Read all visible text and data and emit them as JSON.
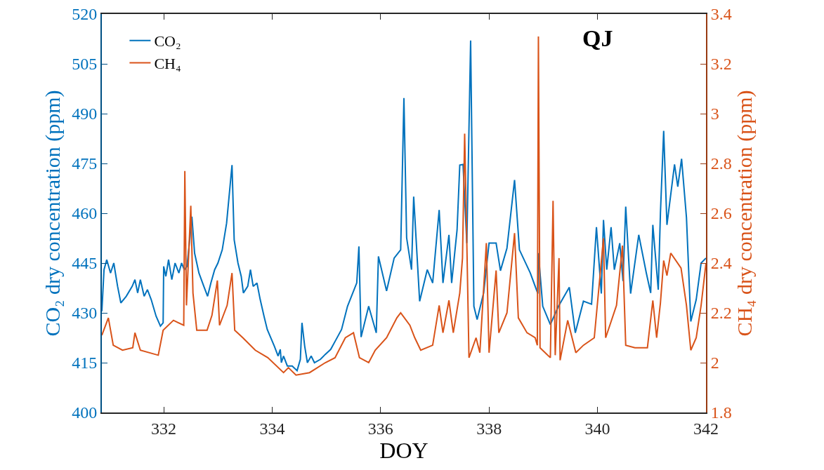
{
  "chart_data": {
    "type": "line",
    "xlabel": "DOY",
    "ylabel": "CO₂ dry concentration (ppm)",
    "y2label": "CH₄ dry concentration (ppm)",
    "annotations": [
      "QJ"
    ],
    "xlim": [
      330.86,
      342
    ],
    "xticks": [
      332,
      334,
      336,
      338,
      340,
      342
    ],
    "ylim": [
      400,
      520
    ],
    "yticks": [
      400,
      415,
      430,
      445,
      460,
      475,
      490,
      505,
      520
    ],
    "y2lim": [
      1.8,
      3.4
    ],
    "y2ticks": [
      1.8,
      2,
      2.2,
      2.4,
      2.6,
      2.8,
      3,
      3.2,
      3.4
    ],
    "grid": false,
    "legend": "top left",
    "marker": "none",
    "line_style": "solid",
    "series": [
      {
        "name": "CO₂",
        "color": "#0072bd",
        "x": [
          330.86,
          330.9,
          330.95,
          331.02,
          331.08,
          331.15,
          331.21,
          331.31,
          331.42,
          331.47,
          331.52,
          331.57,
          331.64,
          331.7,
          331.77,
          331.86,
          331.94,
          331.99,
          332,
          332.04,
          332.09,
          332.15,
          332.21,
          332.28,
          332.33,
          332.38,
          332.43,
          332.48,
          332.52,
          332.57,
          332.65,
          332.74,
          332.81,
          332.87,
          332.94,
          333,
          333.08,
          333.16,
          333.26,
          333.3,
          333.37,
          333.43,
          333.47,
          333.55,
          333.6,
          333.65,
          333.72,
          333.78,
          333.85,
          333.91,
          334.04,
          334.11,
          334.15,
          334.17,
          334.21,
          334.28,
          334.37,
          334.46,
          334.52,
          334.55,
          334.6,
          334.65,
          334.72,
          334.78,
          334.89,
          334.98,
          335.08,
          335.18,
          335.28,
          335.39,
          335.56,
          335.6,
          335.64,
          335.78,
          335.92,
          335.96,
          336.11,
          336.25,
          336.37,
          336.43,
          336.48,
          336.57,
          336.61,
          336.72,
          336.86,
          336.96,
          337.08,
          337.15,
          337.26,
          337.31,
          337.41,
          337.46,
          337.52,
          337.59,
          337.66,
          337.72,
          337.78,
          337.9,
          338,
          338.13,
          338.21,
          338.33,
          338.47,
          338.56,
          338.76,
          338.9,
          338.91,
          338.99,
          339.13,
          339.28,
          339.48,
          339.59,
          339.74,
          339.89,
          339.98,
          340.07,
          340.11,
          340.17,
          340.25,
          340.31,
          340.41,
          340.47,
          340.52,
          340.61,
          340.76,
          340.9,
          340.98,
          341.02,
          341.12,
          341.16,
          341.22,
          341.28,
          341.42,
          341.48,
          341.55,
          341.64,
          341.72,
          341.82,
          341.91,
          342
        ],
        "values": [
          430.5,
          443,
          446,
          442,
          445,
          438,
          433,
          435,
          438,
          440,
          436,
          440,
          435,
          437,
          434,
          429,
          426,
          427,
          444,
          441,
          446,
          440,
          445,
          442,
          445,
          443,
          444,
          452,
          459,
          448,
          442,
          438,
          435,
          439,
          443,
          445,
          449,
          457,
          474.5,
          452,
          445,
          441,
          436,
          438,
          443,
          438,
          439,
          434,
          429,
          425,
          420,
          417,
          419,
          415,
          417,
          414,
          414,
          412.6,
          416,
          427,
          420,
          415,
          417,
          415,
          416,
          417.5,
          419,
          422,
          425,
          432,
          439,
          450,
          422.7,
          432,
          424,
          447,
          436.6,
          446.5,
          449,
          494.7,
          452.6,
          443,
          465,
          433.5,
          443,
          439,
          461,
          439,
          453.5,
          439,
          455,
          474.5,
          474.7,
          451,
          512,
          432,
          428,
          436,
          451,
          451,
          442.7,
          449.5,
          470,
          449,
          442,
          435.8,
          448,
          432,
          426.5,
          432,
          437.7,
          424,
          433.5,
          432.6,
          455.8,
          435.8,
          458,
          443,
          455.8,
          443,
          451,
          439.6,
          462,
          435.8,
          453.5,
          442,
          436,
          456.5,
          437,
          460,
          484.8,
          456.5,
          474.7,
          468,
          476.4,
          458.7,
          427.4,
          434,
          445,
          446.5
        ]
      },
      {
        "name": "CH₄",
        "color": "#d95319",
        "axis": "y2",
        "x": [
          330.86,
          330.98,
          331.07,
          331.24,
          331.43,
          331.47,
          331.57,
          331.9,
          331.99,
          332.18,
          332.37,
          332.39,
          332.42,
          332.5,
          332.54,
          332.61,
          332.8,
          332.89,
          332.99,
          333.03,
          333.17,
          333.26,
          333.31,
          333.46,
          333.69,
          333.92,
          334.21,
          334.3,
          334.44,
          334.69,
          334.98,
          335.16,
          335.35,
          335.5,
          335.61,
          335.78,
          335.9,
          336.11,
          336.3,
          336.37,
          336.54,
          336.63,
          336.74,
          336.96,
          337.08,
          337.15,
          337.26,
          337.34,
          337.46,
          337.51,
          337.55,
          337.59,
          337.63,
          337.76,
          337.83,
          337.95,
          338,
          338.13,
          338.18,
          338.33,
          338.47,
          338.54,
          338.7,
          338.85,
          338.89,
          338.91,
          338.94,
          339.13,
          339.18,
          339.22,
          339.29,
          339.31,
          339.45,
          339.6,
          339.74,
          339.94,
          340.11,
          340.15,
          340.35,
          340.46,
          340.52,
          340.69,
          340.92,
          341.02,
          341.09,
          341.16,
          341.22,
          341.28,
          341.35,
          341.54,
          341.64,
          341.72,
          341.82,
          341.91,
          342
        ],
        "values": [
          2.11,
          2.18,
          2.07,
          2.05,
          2.06,
          2.12,
          2.05,
          2.03,
          2.13,
          2.17,
          2.15,
          2.77,
          2.23,
          2.63,
          2.28,
          2.13,
          2.13,
          2.19,
          2.33,
          2.15,
          2.23,
          2.36,
          2.13,
          2.1,
          2.05,
          2.02,
          1.96,
          1.98,
          1.95,
          1.96,
          2,
          2.02,
          2.1,
          2.12,
          2.02,
          2,
          2.05,
          2.1,
          2.18,
          2.2,
          2.15,
          2.1,
          2.05,
          2.07,
          2.23,
          2.12,
          2.25,
          2.12,
          2.28,
          2.42,
          2.92,
          2.48,
          2.02,
          2.1,
          2.04,
          2.48,
          2.04,
          2.37,
          2.12,
          2.2,
          2.52,
          2.18,
          2.12,
          2.1,
          2.07,
          3.31,
          2.06,
          2.02,
          2.65,
          2.03,
          2.42,
          2.01,
          2.17,
          2.04,
          2.07,
          2.1,
          2.5,
          2.1,
          2.23,
          2.47,
          2.07,
          2.06,
          2.06,
          2.25,
          2.1,
          2.24,
          2.41,
          2.35,
          2.44,
          2.38,
          2.23,
          2.05,
          2.1,
          2.23,
          2.4
        ]
      }
    ]
  }
}
